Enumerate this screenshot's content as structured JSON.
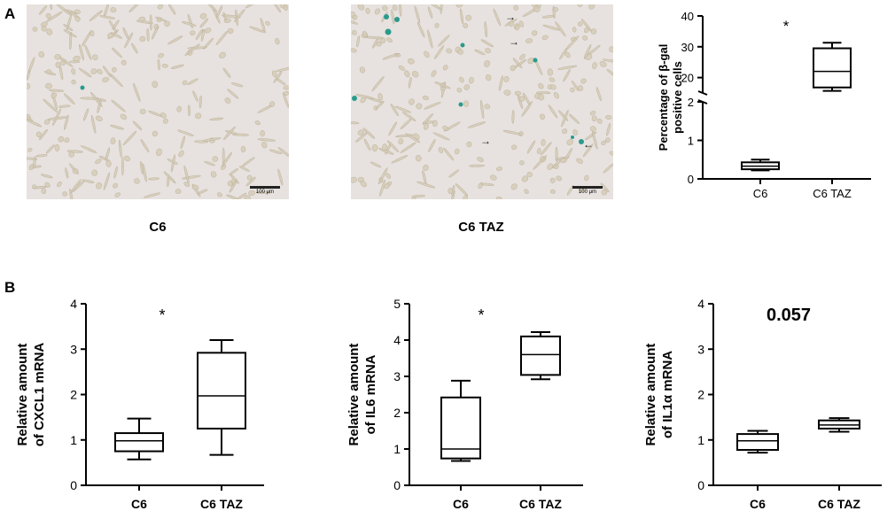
{
  "panel_labels": {
    "a": "A",
    "b": "B"
  },
  "micrographs": [
    {
      "caption": "C6",
      "scale_bar": "100 μm"
    },
    {
      "caption": "C6 TAZ",
      "scale_bar": "100 μm"
    }
  ],
  "colors": {
    "stain": "#2a9a8c",
    "background": "#e7e2df",
    "cells": "#d6cdb8",
    "box": "#000000"
  },
  "chart_data": [
    {
      "type": "box",
      "ylabel": "Percentage of β-gal positive cells",
      "axis_break": true,
      "ylim_lower": [
        0,
        2
      ],
      "ylim_upper": [
        15,
        40
      ],
      "yticks_lower": [
        0,
        1,
        2
      ],
      "yticks_upper": [
        20,
        30,
        40
      ],
      "categories": [
        "C6",
        "C6 TAZ"
      ],
      "boxes": [
        {
          "min": 0.22,
          "q1": 0.25,
          "median": 0.33,
          "q3": 0.43,
          "max": 0.5
        },
        {
          "min": 15.7,
          "q1": 16.8,
          "median": 22.0,
          "q3": 29.5,
          "max": 31.3
        }
      ],
      "annotation": "*"
    },
    {
      "type": "box",
      "ylabel": "Relative amount of CXCL1 mRNA",
      "ylim": [
        0,
        4
      ],
      "yticks": [
        0,
        1,
        2,
        3,
        4
      ],
      "categories": [
        "C6",
        "C6 TAZ"
      ],
      "boxes": [
        {
          "min": 0.57,
          "q1": 0.75,
          "median": 0.98,
          "q3": 1.15,
          "max": 1.47
        },
        {
          "min": 0.67,
          "q1": 1.25,
          "median": 1.97,
          "q3": 2.92,
          "max": 3.2
        }
      ],
      "annotation": "*"
    },
    {
      "type": "box",
      "ylabel": "Relative amount of IL6 mRNA",
      "ylim": [
        0,
        5
      ],
      "yticks": [
        0,
        1,
        2,
        3,
        4,
        5
      ],
      "categories": [
        "C6",
        "C6 TAZ"
      ],
      "boxes": [
        {
          "min": 0.67,
          "q1": 0.74,
          "median": 1.0,
          "q3": 2.42,
          "max": 2.88
        },
        {
          "min": 2.92,
          "q1": 3.04,
          "median": 3.6,
          "q3": 4.1,
          "max": 4.22
        }
      ],
      "annotation": "*"
    },
    {
      "type": "box",
      "ylabel": "Relative amount of IL1α mRNA",
      "ylim": [
        0,
        4
      ],
      "yticks": [
        0,
        1,
        2,
        3,
        4
      ],
      "categories": [
        "C6",
        "C6 TAZ"
      ],
      "boxes": [
        {
          "min": 0.72,
          "q1": 0.78,
          "median": 0.98,
          "q3": 1.13,
          "max": 1.2
        },
        {
          "min": 1.18,
          "q1": 1.25,
          "median": 1.33,
          "q3": 1.43,
          "max": 1.48
        }
      ],
      "annotation": "0.057"
    }
  ]
}
